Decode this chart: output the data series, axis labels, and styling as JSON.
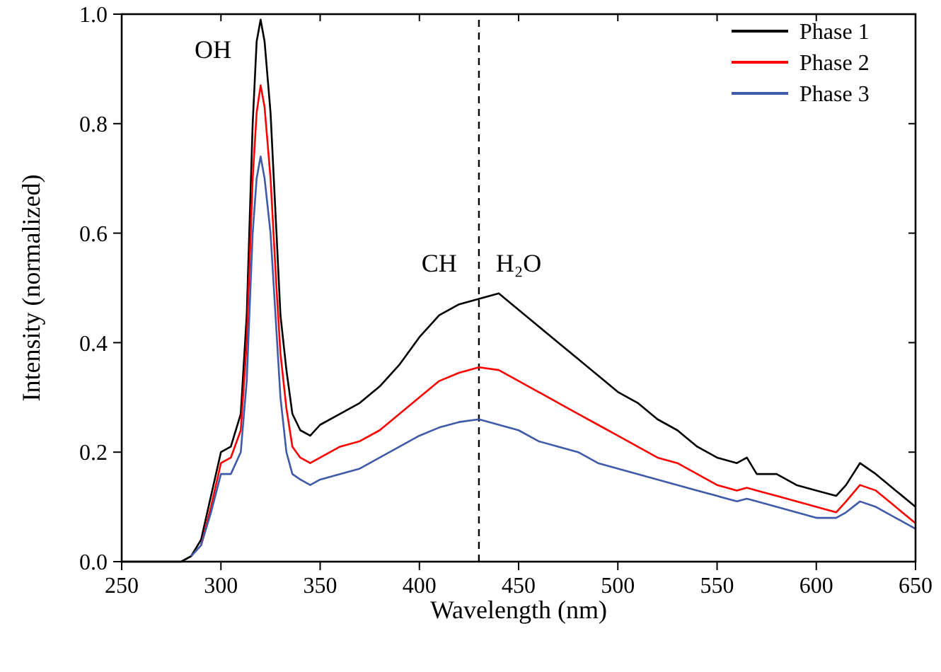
{
  "chart_data": {
    "type": "line",
    "xlabel": "Wavelength (nm)",
    "ylabel": "Intensity (normalized)",
    "x": [
      250,
      280,
      285,
      290,
      295,
      300,
      305,
      310,
      313,
      316,
      318,
      320,
      322,
      325,
      328,
      330,
      333,
      336,
      340,
      345,
      350,
      360,
      370,
      380,
      390,
      400,
      410,
      420,
      430,
      440,
      450,
      460,
      470,
      480,
      490,
      500,
      510,
      520,
      530,
      540,
      550,
      560,
      565,
      570,
      580,
      590,
      600,
      610,
      615,
      622,
      630,
      640,
      650
    ],
    "series": [
      {
        "name": "Phase 1",
        "color": "#000000",
        "values": [
          0,
          0,
          0.01,
          0.04,
          0.12,
          0.2,
          0.21,
          0.27,
          0.45,
          0.8,
          0.95,
          0.99,
          0.95,
          0.82,
          0.6,
          0.45,
          0.35,
          0.27,
          0.24,
          0.23,
          0.25,
          0.27,
          0.29,
          0.32,
          0.36,
          0.41,
          0.45,
          0.47,
          0.48,
          0.49,
          0.46,
          0.43,
          0.4,
          0.37,
          0.34,
          0.31,
          0.29,
          0.26,
          0.24,
          0.21,
          0.19,
          0.18,
          0.19,
          0.16,
          0.16,
          0.14,
          0.13,
          0.12,
          0.14,
          0.18,
          0.16,
          0.13,
          0.1
        ]
      },
      {
        "name": "Phase 2",
        "color": "#ff0000",
        "values": [
          null,
          null,
          null,
          0.03,
          0.1,
          0.18,
          0.19,
          0.24,
          0.4,
          0.7,
          0.82,
          0.87,
          0.83,
          0.7,
          0.5,
          0.38,
          0.28,
          0.21,
          0.19,
          0.18,
          0.19,
          0.21,
          0.22,
          0.24,
          0.27,
          0.3,
          0.33,
          0.345,
          0.355,
          0.35,
          0.33,
          0.31,
          0.29,
          0.27,
          0.25,
          0.23,
          0.21,
          0.19,
          0.18,
          0.16,
          0.14,
          0.13,
          0.135,
          0.13,
          0.12,
          0.11,
          0.1,
          0.09,
          0.11,
          0.14,
          0.13,
          0.1,
          0.07
        ]
      },
      {
        "name": "Phase 3",
        "color": "#3f5aa8",
        "values": [
          null,
          null,
          0.01,
          0.03,
          0.09,
          0.16,
          0.16,
          0.2,
          0.33,
          0.6,
          0.7,
          0.74,
          0.7,
          0.6,
          0.42,
          0.3,
          0.2,
          0.16,
          0.15,
          0.14,
          0.15,
          0.16,
          0.17,
          0.19,
          0.21,
          0.23,
          0.245,
          0.255,
          0.26,
          0.25,
          0.24,
          0.22,
          0.21,
          0.2,
          0.18,
          0.17,
          0.16,
          0.15,
          0.14,
          0.13,
          0.12,
          0.11,
          0.115,
          0.11,
          0.1,
          0.09,
          0.08,
          0.08,
          0.09,
          0.11,
          0.1,
          0.08,
          0.06
        ]
      }
    ],
    "xlim": [
      250,
      650
    ],
    "xticks": [
      250,
      300,
      350,
      400,
      450,
      500,
      550,
      600,
      650
    ],
    "ylim": [
      0,
      1
    ],
    "yticks": [
      {
        "value": 0,
        "label": "0.0"
      },
      {
        "value": 0.2,
        "label": "0.2"
      },
      {
        "value": 0.4,
        "label": "0.4"
      },
      {
        "value": 0.6,
        "label": "0.6"
      },
      {
        "value": 0.8,
        "label": "0.8"
      },
      {
        "value": 1,
        "label": "1.0"
      }
    ],
    "ref_lines": [
      {
        "axis": "x",
        "value": 430,
        "color": "#000000",
        "line_style": "dashed"
      }
    ],
    "annotations": [
      "OH",
      "CH",
      "H₂O"
    ],
    "legend": "top right",
    "grid": false,
    "line_style": "solid",
    "marker": "none"
  }
}
